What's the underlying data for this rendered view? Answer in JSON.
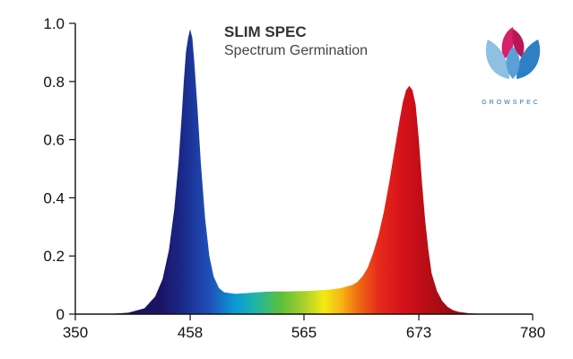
{
  "title": "SLIM SPEC",
  "subtitle": "Spectrum Germination",
  "logo": {
    "text": "GROWSPEC",
    "colors": [
      "#d81f6a",
      "#2f7fc4",
      "#7fb3de"
    ]
  },
  "chart_data": {
    "type": "area",
    "title": "SLIM SPEC",
    "subtitle": "Spectrum Germination",
    "xlabel": "",
    "ylabel": "",
    "xlim": [
      350,
      780
    ],
    "ylim": [
      0,
      1.0
    ],
    "x_ticks": [
      "350",
      "458",
      "565",
      "673",
      "780"
    ],
    "y_ticks": [
      "0",
      "0.2",
      "0.4",
      "0.6",
      "0.8",
      "1.0"
    ],
    "grid": false,
    "legend": "none",
    "fill": "visible-spectrum gradient",
    "series": [
      {
        "x": [
          380,
          400,
          415,
          425,
          432,
          438,
          443,
          447,
          450,
          452,
          454,
          456,
          458,
          460,
          462,
          465,
          468,
          472,
          476,
          480,
          485,
          490,
          500,
          510,
          520,
          530,
          540,
          550,
          560,
          570,
          580,
          590,
          600,
          610,
          615,
          620,
          625,
          630,
          635,
          640,
          645,
          650,
          655,
          658,
          661,
          664,
          667,
          670,
          673,
          676,
          679,
          682,
          685,
          690,
          695,
          700,
          705,
          710,
          720,
          730,
          745
        ],
        "y": [
          0,
          0.005,
          0.02,
          0.06,
          0.12,
          0.22,
          0.36,
          0.52,
          0.68,
          0.8,
          0.9,
          0.95,
          0.98,
          0.95,
          0.86,
          0.7,
          0.52,
          0.33,
          0.2,
          0.13,
          0.09,
          0.075,
          0.07,
          0.072,
          0.075,
          0.077,
          0.078,
          0.078,
          0.079,
          0.08,
          0.082,
          0.085,
          0.09,
          0.1,
          0.11,
          0.13,
          0.16,
          0.21,
          0.27,
          0.35,
          0.45,
          0.56,
          0.67,
          0.73,
          0.77,
          0.785,
          0.77,
          0.72,
          0.6,
          0.45,
          0.32,
          0.22,
          0.14,
          0.08,
          0.045,
          0.025,
          0.014,
          0.008,
          0.003,
          0.001,
          0
        ]
      }
    ]
  }
}
